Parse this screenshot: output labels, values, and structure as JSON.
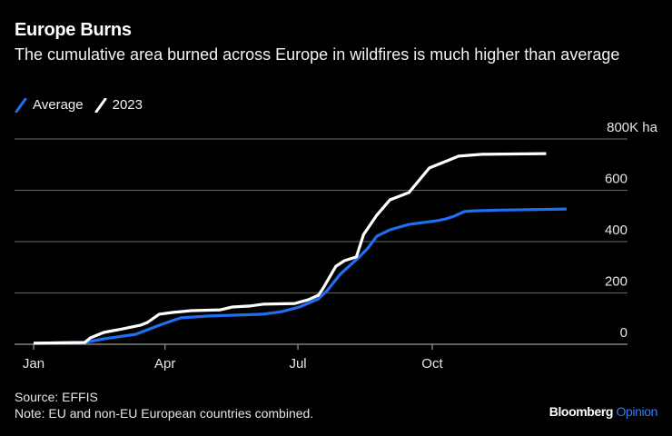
{
  "header": {
    "title": "Europe Burns",
    "subtitle": "The cumulative area burned across Europe in wildfires is much higher than average"
  },
  "legend": [
    {
      "label": "Average",
      "color": "#1f6ff2",
      "icon": "slash-line-icon"
    },
    {
      "label": "2023",
      "color": "#ffffff",
      "icon": "slash-line-icon"
    }
  ],
  "footer": {
    "source": "Source: EFFIS",
    "note": "Note: EU and non-EU European countries combined.",
    "brand": "Bloomberg",
    "brand_accent": "Opinion"
  },
  "chart_data": {
    "type": "line",
    "title": "Europe Burns",
    "subtitle": "The cumulative area burned across Europe in wildfires is much higher than average",
    "xlabel": "",
    "ylabel": "",
    "x_unit": "day of year",
    "xlim": [
      0,
      365
    ],
    "x_ticks": [
      {
        "label": "Jan",
        "day": 0
      },
      {
        "label": "Apr",
        "day": 90
      },
      {
        "label": "Jul",
        "day": 181
      },
      {
        "label": "Oct",
        "day": 273
      }
    ],
    "ylim": [
      0,
      800
    ],
    "y_unit": "thousand hectares",
    "y_ticks": [
      {
        "label": "0",
        "value": 0
      },
      {
        "label": "200",
        "value": 200
      },
      {
        "label": "400",
        "value": 400
      },
      {
        "label": "600",
        "value": 600
      },
      {
        "label": "800K ha",
        "value": 800
      }
    ],
    "grid": true,
    "y_axis_side": "right",
    "legend_position": "top-left",
    "series": [
      {
        "name": "Average",
        "color": "#1f6ff2",
        "points": [
          [
            0,
            4
          ],
          [
            35,
            7
          ],
          [
            48,
            21
          ],
          [
            70,
            39
          ],
          [
            86,
            74
          ],
          [
            95,
            92
          ],
          [
            101,
            103
          ],
          [
            120,
            110
          ],
          [
            157,
            117
          ],
          [
            170,
            127
          ],
          [
            182,
            145
          ],
          [
            195,
            177
          ],
          [
            201,
            209
          ],
          [
            210,
            273
          ],
          [
            223,
            340
          ],
          [
            229,
            375
          ],
          [
            235,
            421
          ],
          [
            244,
            446
          ],
          [
            257,
            467
          ],
          [
            276,
            481
          ],
          [
            282,
            488
          ],
          [
            288,
            499
          ],
          [
            295,
            517
          ],
          [
            301,
            520
          ],
          [
            319,
            523
          ],
          [
            365,
            527
          ]
        ]
      },
      {
        "name": "2023",
        "color": "#ffffff",
        "points": [
          [
            0,
            4
          ],
          [
            35,
            7
          ],
          [
            39,
            25
          ],
          [
            48,
            46
          ],
          [
            61,
            60
          ],
          [
            73,
            74
          ],
          [
            78,
            85
          ],
          [
            86,
            117
          ],
          [
            95,
            124
          ],
          [
            108,
            131
          ],
          [
            128,
            134
          ],
          [
            136,
            145
          ],
          [
            148,
            149
          ],
          [
            157,
            156
          ],
          [
            179,
            159
          ],
          [
            188,
            173
          ],
          [
            195,
            191
          ],
          [
            198,
            216
          ],
          [
            207,
            304
          ],
          [
            213,
            326
          ],
          [
            221,
            340
          ],
          [
            226,
            428
          ],
          [
            235,
            503
          ],
          [
            244,
            563
          ],
          [
            257,
            591
          ],
          [
            271,
            687
          ],
          [
            285,
            719
          ],
          [
            291,
            733
          ],
          [
            307,
            740
          ],
          [
            351,
            743
          ]
        ]
      }
    ]
  }
}
